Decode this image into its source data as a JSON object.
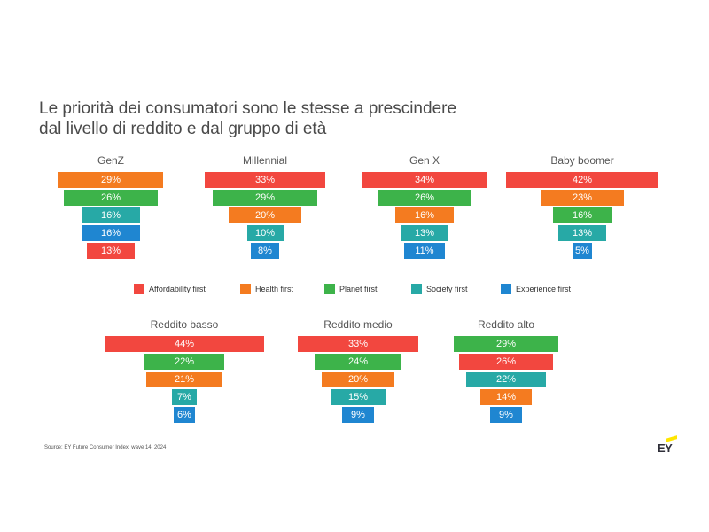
{
  "title": {
    "line1": "Le priorità dei consumatori sono le stesse a prescindere",
    "line2": "dal livello di reddito e dal gruppo di età"
  },
  "colors": {
    "Affordability first": "#f2473f",
    "Health first": "#f47b20",
    "Planet first": "#3db34a",
    "Society first": "#27a9a6",
    "Experience first": "#1f86d1"
  },
  "legend": [
    "Affordability first",
    "Health first",
    "Planet first",
    "Society first",
    "Experience first"
  ],
  "chart_data": [
    {
      "type": "funnel",
      "title": "GenZ",
      "bars": [
        {
          "category": "Health first",
          "value": 29,
          "label": "29%"
        },
        {
          "category": "Planet first",
          "value": 26,
          "label": "26%"
        },
        {
          "category": "Society first",
          "value": 16,
          "label": "16%"
        },
        {
          "category": "Experience first",
          "value": 16,
          "label": "16%"
        },
        {
          "category": "Affordability first",
          "value": 13,
          "label": "13%"
        }
      ]
    },
    {
      "type": "funnel",
      "title": "Millennial",
      "bars": [
        {
          "category": "Affordability first",
          "value": 33,
          "label": "33%"
        },
        {
          "category": "Planet first",
          "value": 29,
          "label": "29%"
        },
        {
          "category": "Health first",
          "value": 20,
          "label": "20%"
        },
        {
          "category": "Society first",
          "value": 10,
          "label": "10%"
        },
        {
          "category": "Experience first",
          "value": 8,
          "label": "8%"
        }
      ]
    },
    {
      "type": "funnel",
      "title": "Gen X",
      "bars": [
        {
          "category": "Affordability first",
          "value": 34,
          "label": "34%"
        },
        {
          "category": "Planet first",
          "value": 26,
          "label": "26%"
        },
        {
          "category": "Health first",
          "value": 16,
          "label": "16%"
        },
        {
          "category": "Society first",
          "value": 13,
          "label": "13%"
        },
        {
          "category": "Experience first",
          "value": 11,
          "label": "11%"
        }
      ]
    },
    {
      "type": "funnel",
      "title": "Baby boomer",
      "bars": [
        {
          "category": "Affordability first",
          "value": 42,
          "label": "42%"
        },
        {
          "category": "Health first",
          "value": 23,
          "label": "23%"
        },
        {
          "category": "Planet first",
          "value": 16,
          "label": "16%"
        },
        {
          "category": "Society first",
          "value": 13,
          "label": "13%"
        },
        {
          "category": "Experience first",
          "value": 5,
          "label": "5%"
        }
      ]
    },
    {
      "type": "funnel",
      "title": "Reddito basso",
      "bars": [
        {
          "category": "Affordability first",
          "value": 44,
          "label": "44%"
        },
        {
          "category": "Planet first",
          "value": 22,
          "label": "22%"
        },
        {
          "category": "Health first",
          "value": 21,
          "label": "21%"
        },
        {
          "category": "Society first",
          "value": 7,
          "label": "7%"
        },
        {
          "category": "Experience first",
          "value": 6,
          "label": "6%"
        }
      ]
    },
    {
      "type": "funnel",
      "title": "Reddito medio",
      "bars": [
        {
          "category": "Affordability first",
          "value": 33,
          "label": "33%"
        },
        {
          "category": "Planet first",
          "value": 24,
          "label": "24%"
        },
        {
          "category": "Health first",
          "value": 20,
          "label": "20%"
        },
        {
          "category": "Society first",
          "value": 15,
          "label": "15%"
        },
        {
          "category": "Experience first",
          "value": 9,
          "label": "9%"
        }
      ]
    },
    {
      "type": "funnel",
      "title": "Reddito alto",
      "bars": [
        {
          "category": "Planet first",
          "value": 29,
          "label": "29%"
        },
        {
          "category": "Affordability first",
          "value": 26,
          "label": "26%"
        },
        {
          "category": "Society first",
          "value": 22,
          "label": "22%"
        },
        {
          "category": "Health first",
          "value": 14,
          "label": "14%"
        },
        {
          "category": "Experience first",
          "value": 9,
          "label": "9%"
        }
      ]
    }
  ],
  "source": "Source: EY Future Consumer Index, wave 14, 2024",
  "logo": {
    "text": "EY"
  }
}
